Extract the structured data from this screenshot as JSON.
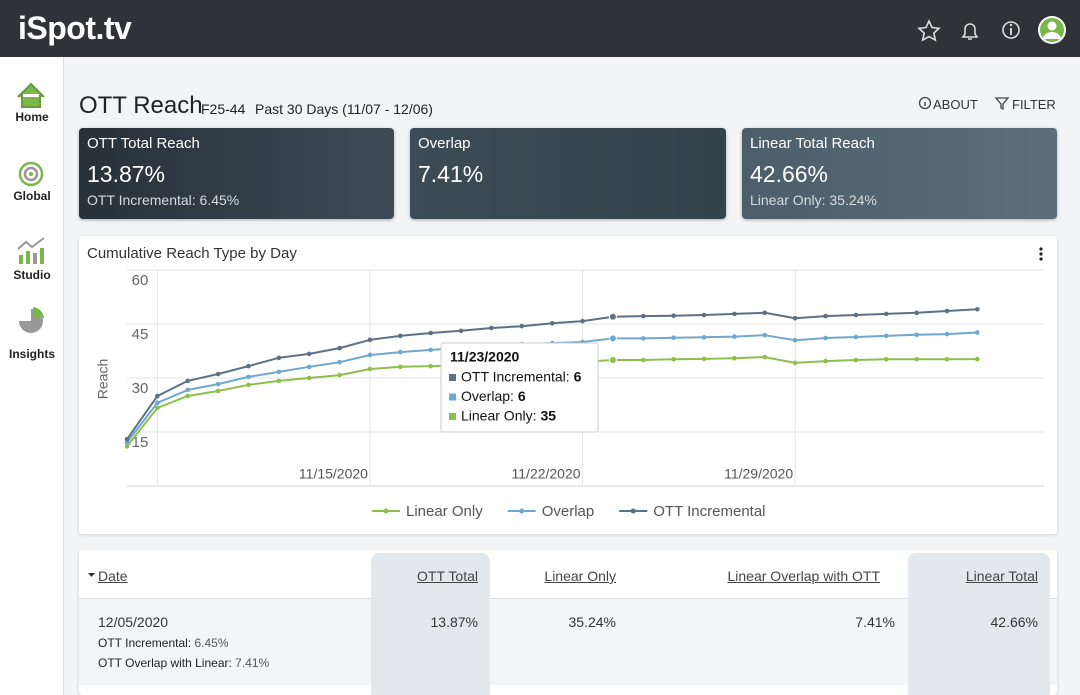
{
  "header": {
    "logo": "iSpot.tv"
  },
  "nav": [
    "Home",
    "Global",
    "Studio",
    "Insights"
  ],
  "page": {
    "title": "OTT Reach",
    "segment": "F25-44",
    "range": "Past 30 Days (11/07 - 12/06)",
    "actions": [
      "ABOUT",
      "FILTER"
    ]
  },
  "cards": [
    {
      "title": "OTT Total Reach",
      "value": "13.87%",
      "sub": "OTT Incremental: 6.45%"
    },
    {
      "title": "Overlap",
      "value": "7.41%"
    },
    {
      "title": "Linear Total Reach",
      "value": "42.66%",
      "sub": "Linear Only: 35.24%"
    }
  ],
  "chart_data": {
    "type": "line",
    "stacked": true,
    "title": "Cumulative Reach Type by Day",
    "ylabel": "Reach",
    "x": [
      "11/07/2020",
      "11/08/2020",
      "11/09/2020",
      "11/10/2020",
      "11/11/2020",
      "11/12/2020",
      "11/13/2020",
      "11/14/2020",
      "11/15/2020",
      "11/16/2020",
      "11/17/2020",
      "11/18/2020",
      "11/19/2020",
      "11/20/2020",
      "11/21/2020",
      "11/22/2020",
      "11/23/2020",
      "11/24/2020",
      "11/25/2020",
      "11/26/2020",
      "11/27/2020",
      "11/28/2020",
      "11/29/2020",
      "11/30/2020",
      "12/01/2020",
      "12/02/2020",
      "12/03/2020",
      "12/04/2020",
      "12/05/2020"
    ],
    "xticks": [
      "11/15/2020",
      "11/22/2020",
      "11/29/2020"
    ],
    "ylim": [
      0,
      60
    ],
    "yticks": [
      15,
      30,
      45,
      60
    ],
    "grid": true,
    "legend": "bottom",
    "series": [
      {
        "name": "Linear Only",
        "color": "#8dc04a",
        "values": [
          11,
          21.7,
          25,
          26.4,
          28.1,
          29.2,
          30,
          30.8,
          32.5,
          33.1,
          33.3,
          33.5,
          33.8,
          34,
          34.2,
          34.5,
          35,
          35,
          35.2,
          35.3,
          35.5,
          35.8,
          34.2,
          34.7,
          35,
          35.2,
          35.2,
          35.2,
          35.24
        ]
      },
      {
        "name": "Overlap",
        "color": "#6ea8cf",
        "values": [
          1.1,
          1.4,
          1.7,
          1.9,
          2.2,
          2.5,
          3.1,
          3.6,
          3.9,
          4.1,
          4.5,
          4.8,
          5,
          5.4,
          5.5,
          5.5,
          6,
          6,
          6,
          6,
          6,
          6.1,
          6.3,
          6.4,
          6.4,
          6.5,
          6.8,
          7,
          7.41
        ]
      },
      {
        "name": "OTT Incremental",
        "color": "#5b7186",
        "values": [
          0.9,
          1.9,
          2.5,
          2.8,
          3,
          3.9,
          3.6,
          3.9,
          4.2,
          4.5,
          4.7,
          4.8,
          5.1,
          5,
          5.5,
          5.8,
          6,
          6.2,
          6.1,
          6.2,
          6.3,
          6.2,
          6.1,
          6.1,
          6.1,
          6.1,
          6.1,
          6.4,
          6.45
        ]
      }
    ],
    "tooltip": {
      "title": "11/23/2020",
      "items": [
        {
          "label": "OTT Incremental:",
          "value": 6
        },
        {
          "label": "Overlap:",
          "value": 6
        },
        {
          "label": "Linear Only:",
          "value": 35
        }
      ]
    }
  },
  "table": {
    "columns": [
      "Date",
      "OTT Total",
      "Linear Only",
      "Linear Overlap with OTT",
      "Linear Total"
    ],
    "rows": [
      {
        "cells": [
          "12/05/2020",
          "13.87%",
          "35.24%",
          "7.41%",
          "42.66%"
        ],
        "notes": [
          {
            "label": "OTT Incremental:",
            "value": "6.45%"
          },
          {
            "label": "OTT Overlap with Linear:",
            "value": "7.41%"
          }
        ]
      }
    ]
  }
}
